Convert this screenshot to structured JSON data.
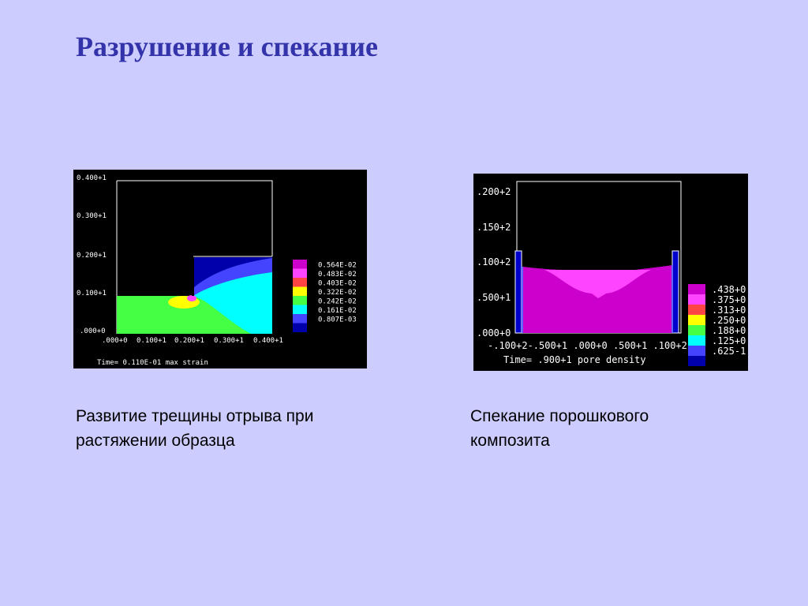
{
  "slide": {
    "title": "Разрушение и спекание"
  },
  "left_figure": {
    "caption_line1": "Развитие трещины отрыва при",
    "caption_line2": "растяжении образца",
    "y_ticks": [
      "0.400+1",
      "0.300+1",
      "0.200+1",
      "0.100+1",
      ".000+0"
    ],
    "x_ticks": [
      ".000+0",
      "0.100+1",
      "0.200+1",
      "0.300+1",
      "0.400+1"
    ],
    "footer": "Time= 0.110E-01  max strain",
    "legend": [
      {
        "value": "0.564E-02",
        "color": "#cc00cc"
      },
      {
        "value": "0.483E-02",
        "color": "#ff44ff"
      },
      {
        "value": "0.403E-02",
        "color": "#ff4444"
      },
      {
        "value": "0.322E-02",
        "color": "#ffff00"
      },
      {
        "value": "0.242E-02",
        "color": "#44ff44"
      },
      {
        "value": "0.161E-02",
        "color": "#00ffff"
      },
      {
        "value": "0.807E-03",
        "color": "#4444ff"
      },
      {
        "value": "",
        "color": "#0000aa"
      }
    ]
  },
  "right_figure": {
    "caption_line1": "Спекание порошкового",
    "caption_line2": "композита",
    "y_ticks": [
      ".200+2",
      ".150+2",
      ".100+2",
      ".500+1",
      ".000+0"
    ],
    "x_ticks_text": "-.100+2-.500+1 .000+0 .500+1 .100+2",
    "footer": "Time= .900+1   pore density",
    "legend": [
      {
        "value": ".438+0",
        "color": "#cc00cc"
      },
      {
        "value": ".375+0",
        "color": "#ff44ff"
      },
      {
        "value": ".313+0",
        "color": "#ff4444"
      },
      {
        "value": ".250+0",
        "color": "#ffff00"
      },
      {
        "value": ".188+0",
        "color": "#44ff44"
      },
      {
        "value": ".125+0",
        "color": "#00ffff"
      },
      {
        "value": ".625-1",
        "color": "#4444ff"
      },
      {
        "value": "",
        "color": "#0000aa"
      }
    ]
  }
}
